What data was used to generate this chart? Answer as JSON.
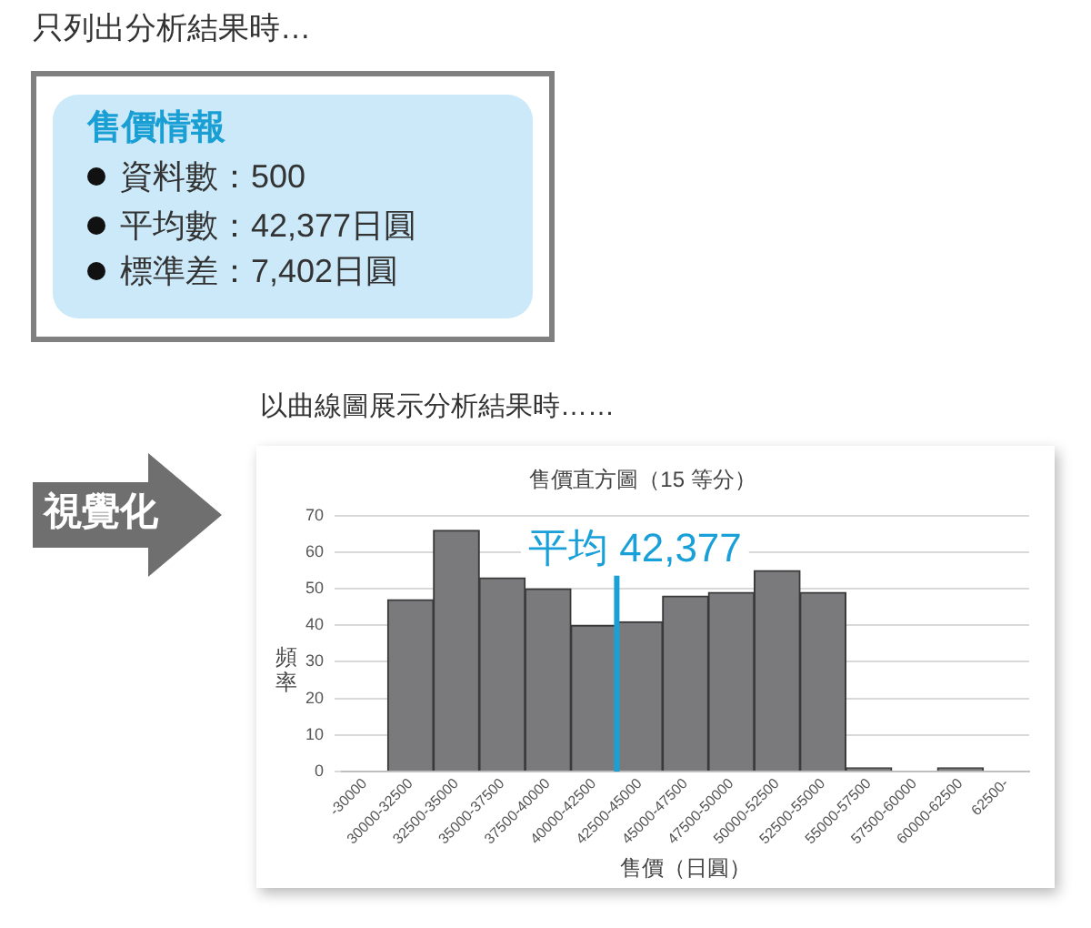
{
  "chart_data": {
    "type": "bar",
    "title": "售價直方圖（15 等分）",
    "xlabel": "售價（日圓）",
    "ylabel": "頻率",
    "categories": [
      "-30000",
      "30000-32500",
      "32500-35000",
      "35000-37500",
      "37500-40000",
      "40000-42500",
      "42500-45000",
      "45000-47500",
      "47500-50000",
      "50000-52500",
      "52500-55000",
      "55000-57500",
      "57500-60000",
      "60000-62500",
      "62500-"
    ],
    "values": [
      0,
      47,
      66,
      53,
      50,
      40,
      41,
      48,
      49,
      55,
      49,
      1,
      0,
      1,
      0
    ],
    "color": "#7a7a7c",
    "ylim": [
      0,
      70
    ],
    "yticks": [
      0,
      10,
      20,
      30,
      40,
      50,
      60,
      70
    ],
    "grid": "y",
    "ref_lines": [
      {
        "axis": "x",
        "value": "40000-42500",
        "label": "平均 42,377",
        "color": "#1aa0d8"
      }
    ],
    "annotations": [
      "只列出分析結果時…",
      "售價情報",
      "資料數：500",
      "平均數：42,377日圓",
      "標準差：7,402日圓",
      "視覺化",
      "以曲線圖展示分析結果時……"
    ]
  }
}
